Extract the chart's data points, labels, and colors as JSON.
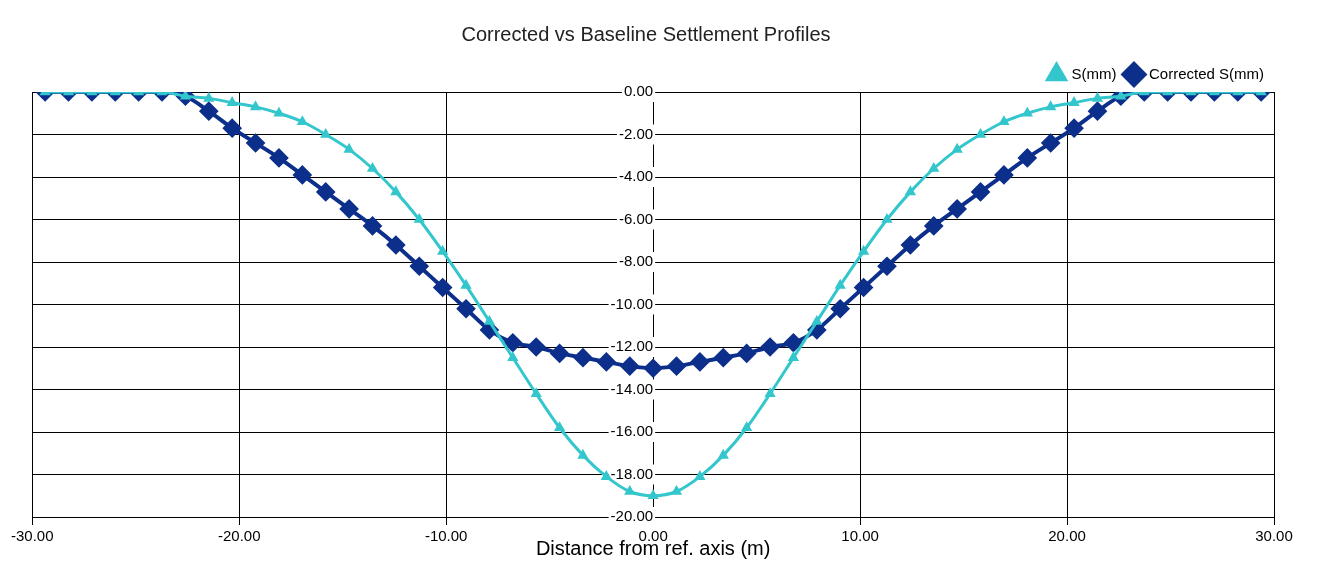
{
  "chart_data": {
    "type": "line",
    "title": "Corrected vs Baseline Settlement Profiles",
    "xlabel": "Distance from ref. axis (m)",
    "x": [
      -29.38,
      -28.25,
      -27.12,
      -25.99,
      -24.86,
      -23.73,
      -22.6,
      -21.47,
      -20.34,
      -19.21,
      -18.08,
      -16.95,
      -15.82,
      -14.69,
      -13.56,
      -12.43,
      -11.3,
      -10.17,
      -9.04,
      -7.91,
      -6.78,
      -5.65,
      -4.52,
      -3.39,
      -2.26,
      -1.13,
      0,
      1.13,
      2.26,
      3.39,
      4.52,
      5.65,
      6.78,
      7.91,
      9.04,
      10.17,
      11.3,
      12.43,
      13.56,
      14.69,
      15.82,
      16.95,
      18.08,
      19.21,
      20.34,
      21.47,
      22.6,
      23.73,
      24.86,
      25.99,
      27.12,
      28.25,
      29.38
    ],
    "series": [
      {
        "name": "S(mm)",
        "color": "#33c6cc",
        "marker": "triangle",
        "values": [
          0,
          0,
          0,
          0,
          0,
          0,
          -0.2,
          -0.3,
          -0.5,
          -0.7,
          -1.0,
          -1.4,
          -2.0,
          -2.7,
          -3.6,
          -4.7,
          -6.0,
          -7.5,
          -9.1,
          -10.8,
          -12.5,
          -14.2,
          -15.8,
          -17.1,
          -18.1,
          -18.8,
          -19.0,
          -18.8,
          -18.1,
          -17.1,
          -15.8,
          -14.2,
          -12.5,
          -10.8,
          -9.1,
          -7.5,
          -6.0,
          -4.7,
          -3.6,
          -2.7,
          -2.0,
          -1.4,
          -1.0,
          -0.7,
          -0.5,
          -0.3,
          -0.2,
          0,
          0,
          0,
          0,
          0,
          0
        ]
      },
      {
        "name": "Corrected S(mm)",
        "color": "#0d2f8c",
        "marker": "diamond",
        "values": [
          0,
          0,
          0,
          0,
          0,
          0,
          -0.2,
          -0.9,
          -1.7,
          -2.4,
          -3.1,
          -3.9,
          -4.7,
          -5.5,
          -6.3,
          -7.2,
          -8.2,
          -9.2,
          -10.2,
          -11.2,
          -11.8,
          -12.0,
          -12.3,
          -12.5,
          -12.7,
          -12.9,
          -13.0,
          -12.9,
          -12.7,
          -12.5,
          -12.3,
          -12.0,
          -11.8,
          -11.2,
          -10.2,
          -9.2,
          -8.2,
          -7.2,
          -6.3,
          -5.5,
          -4.7,
          -3.9,
          -3.1,
          -2.4,
          -1.7,
          -0.9,
          -0.2,
          0,
          0,
          0,
          0,
          0,
          0
        ]
      }
    ],
    "xlim": [
      -30,
      30
    ],
    "xticks": [
      {
        "value": -30,
        "label": "-30.00"
      },
      {
        "value": -20,
        "label": "-20.00"
      },
      {
        "value": -10,
        "label": "-10.00"
      },
      {
        "value": 0,
        "label": "0.00"
      },
      {
        "value": 10,
        "label": "10.00"
      },
      {
        "value": 20,
        "label": "20.00"
      },
      {
        "value": 30,
        "label": "30.00"
      }
    ],
    "ylim": [
      -20,
      0
    ],
    "yticks": [
      {
        "value": 0,
        "label": "0.00"
      },
      {
        "value": -2,
        "label": "-2.00"
      },
      {
        "value": -4,
        "label": "-4.00"
      },
      {
        "value": -6,
        "label": "-6.00"
      },
      {
        "value": -8,
        "label": "-8.00"
      },
      {
        "value": -10,
        "label": "-10.00"
      },
      {
        "value": -12,
        "label": "-12.00"
      },
      {
        "value": -14,
        "label": "-14.00"
      },
      {
        "value": -16,
        "label": "-16.00"
      },
      {
        "value": -18,
        "label": "-18.00"
      },
      {
        "value": -20,
        "label": "-20.00"
      }
    ],
    "grid": true,
    "legend": "top right"
  }
}
